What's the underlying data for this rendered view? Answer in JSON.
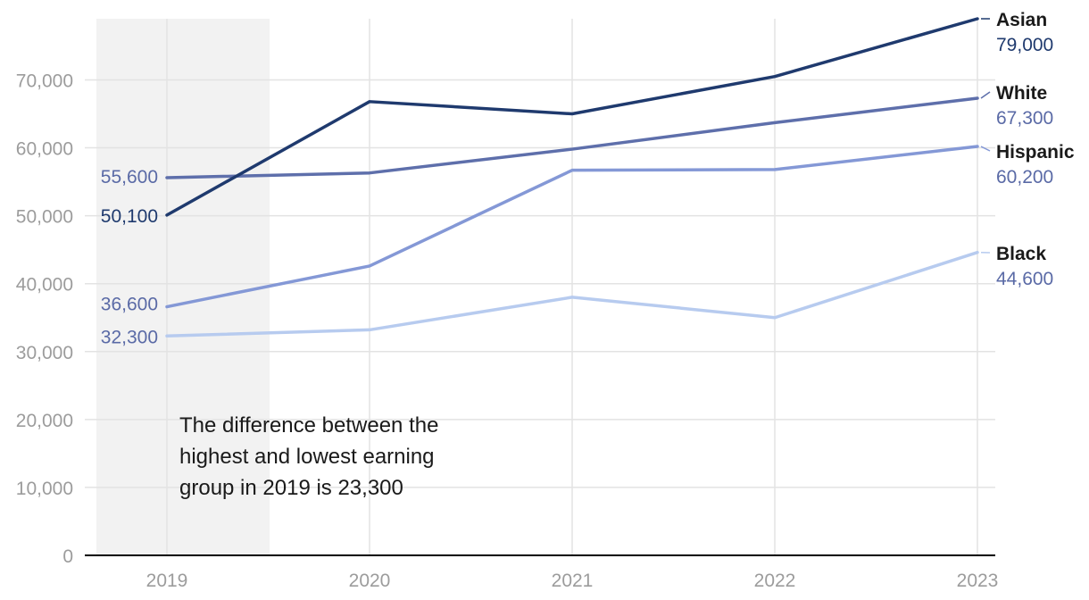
{
  "chart_data": {
    "type": "line",
    "title": "",
    "xlabel": "",
    "ylabel": "",
    "ylim": [
      0,
      79000
    ],
    "grid": true,
    "categories": [
      "2019",
      "2020",
      "2021",
      "2022",
      "2023"
    ],
    "y_ticks": [
      0,
      10000,
      20000,
      30000,
      40000,
      50000,
      60000,
      70000
    ],
    "y_tick_labels": [
      "0",
      "10,000",
      "20,000",
      "30,000",
      "40,000",
      "50,000",
      "60,000",
      "70,000"
    ],
    "highlight_range": {
      "from": "2019",
      "to": "mid-2019/2020"
    },
    "annotation": {
      "lines": [
        "The difference between the",
        "highest and lowest earning",
        "group in 2019 is 23,300"
      ]
    },
    "series": [
      {
        "name": "Asian",
        "values": [
          50100,
          66800,
          65000,
          70500,
          79000
        ],
        "start_label": "50,100",
        "end_label": "79,000",
        "color": "#1f3a6e",
        "label_color": "#1f3a6e"
      },
      {
        "name": "White",
        "values": [
          55600,
          56300,
          59800,
          63700,
          67300
        ],
        "start_label": "55,600",
        "end_label": "67,300",
        "color": "#5e6fab",
        "label_color": "#5a6aa6"
      },
      {
        "name": "Hispanic",
        "values": [
          36600,
          42600,
          56700,
          56800,
          60200
        ],
        "start_label": "36,600",
        "end_label": "60,200",
        "color": "#8498d6",
        "label_color": "#5a6aa6"
      },
      {
        "name": "Black",
        "values": [
          32300,
          33200,
          38000,
          35000,
          44600
        ],
        "start_label": "32,300",
        "end_label": "44,600",
        "color": "#b7cbef",
        "label_color": "#5a6aa6"
      }
    ]
  }
}
